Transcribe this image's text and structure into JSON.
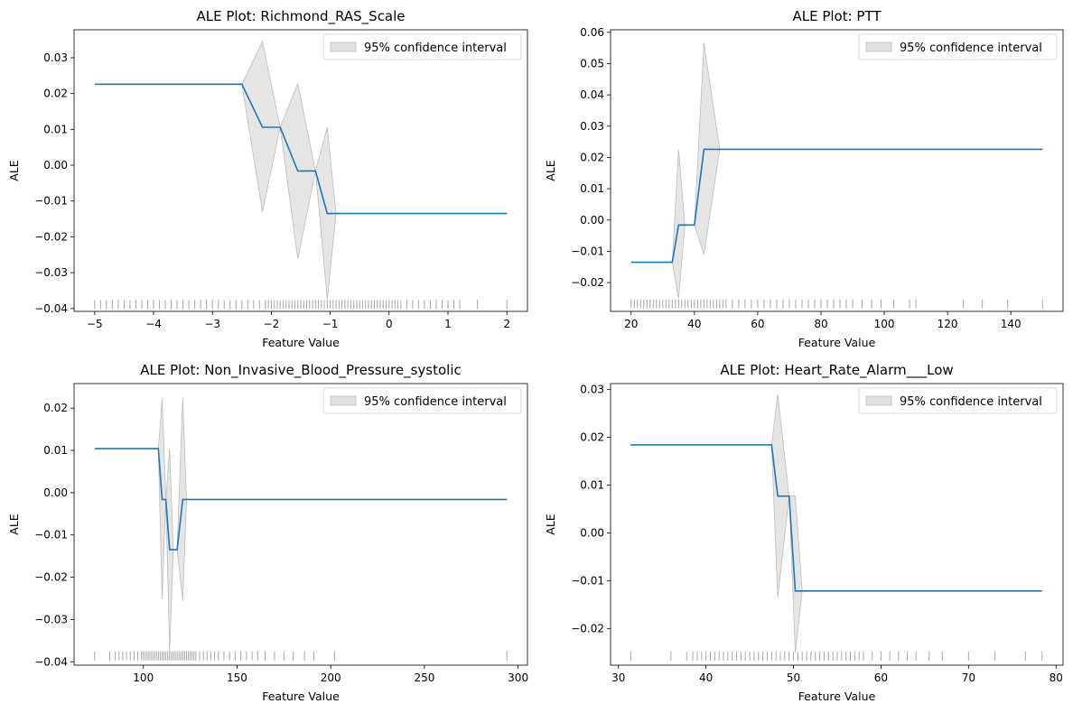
{
  "legend_label": "95% confidence interval",
  "colors": {
    "line": "#1f77b4",
    "ci_fill": "#cccccc",
    "ci_edge": "#bdbdbd",
    "rug": "#000000"
  },
  "chart_data": [
    {
      "type": "line",
      "title": "ALE Plot: Richmond_RAS_Scale",
      "xlabel": "Feature Value",
      "ylabel": "ALE",
      "xlim": [
        -5.35,
        2.35
      ],
      "ylim": [
        -0.0408,
        0.0378
      ],
      "xticks": [
        -5,
        -4,
        -3,
        -2,
        -1,
        0,
        1,
        2
      ],
      "yticks": [
        -0.04,
        -0.03,
        -0.02,
        -0.01,
        0.0,
        0.01,
        0.02,
        0.03
      ],
      "ytick_labels": [
        "−0.04",
        "−0.03",
        "−0.02",
        "−0.01",
        "0.00",
        "0.01",
        "0.02",
        "0.03"
      ],
      "xtick_labels": [
        "−5",
        "−4",
        "−3",
        "−2",
        "−1",
        "0",
        "1",
        "2"
      ],
      "legend": "upper right",
      "ale": {
        "x": [
          -5,
          -2.5,
          -2.15,
          -1.85,
          -1.55,
          -1.25,
          -1.05,
          2
        ],
        "y": [
          0.0226,
          0.0226,
          0.0106,
          0.0106,
          -0.0016,
          -0.0016,
          -0.0135,
          -0.0135
        ]
      },
      "ci": {
        "x": [
          -2.5,
          -2.15,
          -1.85,
          -1.55,
          -1.25,
          -1.05,
          -0.9
        ],
        "upper": [
          0.0226,
          0.0345,
          0.0106,
          0.0228,
          -0.0016,
          0.0105,
          -0.0135
        ],
        "lower": [
          0.0226,
          -0.013,
          0.0106,
          -0.0262,
          -0.0016,
          -0.0375,
          -0.0135
        ]
      },
      "rug": {
        "x": [
          -5,
          -4.9,
          -4.8,
          -4.7,
          -4.6,
          -4.5,
          -4.4,
          -4.3,
          -4.2,
          -4.1,
          -4,
          -3.9,
          -3.8,
          -3.7,
          -3.6,
          -3.5,
          -3.4,
          -3.3,
          -3.2,
          -3.1,
          -3,
          -2.9,
          -2.8,
          -2.7,
          -2.6,
          -2.5,
          -2.4,
          -2.3,
          -2.2,
          -2.1,
          -2.05,
          -2,
          -1.95,
          -1.9,
          -1.85,
          -1.8,
          -1.75,
          -1.7,
          -1.65,
          -1.6,
          -1.55,
          -1.5,
          -1.45,
          -1.4,
          -1.35,
          -1.3,
          -1.25,
          -1.2,
          -1.15,
          -1.1,
          -1.05,
          -1,
          -0.95,
          -0.9,
          -0.85,
          -0.8,
          -0.75,
          -0.7,
          -0.65,
          -0.6,
          -0.55,
          -0.5,
          -0.45,
          -0.4,
          -0.35,
          -0.3,
          -0.25,
          -0.2,
          -0.15,
          -0.1,
          -0.05,
          0,
          0.05,
          0.1,
          0.15,
          0.2,
          0.3,
          0.4,
          0.5,
          0.6,
          0.7,
          0.8,
          0.9,
          1.0,
          1.1,
          1.2,
          1.5,
          2.0
        ],
        "y": -0.0389
      }
    },
    {
      "type": "line",
      "title": "ALE Plot: PTT",
      "xlabel": "Feature Value",
      "ylabel": "ALE",
      "xlim": [
        13.5,
        156.5
      ],
      "ylim": [
        -0.0292,
        0.0608
      ],
      "xticks": [
        20,
        40,
        60,
        80,
        100,
        120,
        140
      ],
      "yticks": [
        -0.02,
        -0.01,
        0.0,
        0.01,
        0.02,
        0.03,
        0.04,
        0.05,
        0.06
      ],
      "ytick_labels": [
        "−0.02",
        "−0.01",
        "0.00",
        "0.01",
        "0.02",
        "0.03",
        "0.04",
        "0.05",
        "0.06"
      ],
      "xtick_labels": [
        "20",
        "40",
        "60",
        "80",
        "100",
        "120",
        "140"
      ],
      "legend": "upper right",
      "ale": {
        "x": [
          20,
          33,
          35,
          37,
          40,
          43,
          150
        ],
        "y": [
          -0.0135,
          -0.0135,
          -0.0016,
          -0.0016,
          -0.0016,
          0.0226,
          0.0226
        ]
      },
      "ci": {
        "x": [
          33,
          35,
          37,
          40,
          43,
          48
        ],
        "upper": [
          -0.0135,
          0.0225,
          -0.0016,
          -0.0016,
          0.0565,
          0.0226
        ],
        "lower": [
          -0.0135,
          -0.025,
          -0.0016,
          -0.0016,
          -0.011,
          0.0226
        ]
      },
      "rug": {
        "x": [
          20,
          21,
          22,
          23,
          24,
          25,
          26,
          27,
          28,
          29,
          30,
          31,
          32,
          33,
          34,
          35,
          36,
          37,
          38,
          39,
          40,
          41,
          42,
          43,
          44,
          45,
          46,
          47,
          48,
          49,
          50,
          52,
          54,
          56,
          58,
          60,
          62,
          64,
          66,
          68,
          70,
          72,
          74,
          76,
          78,
          80,
          82,
          84,
          86,
          88,
          90,
          93,
          96,
          99,
          103,
          108,
          110,
          125,
          131,
          139,
          150
        ],
        "y": -0.0268
      }
    },
    {
      "type": "line",
      "title": "ALE Plot: Non_Invasive_Blood_Pressure_systolic",
      "xlabel": "Feature Value",
      "ylabel": "ALE",
      "xlim": [
        63,
        305
      ],
      "ylim": [
        -0.0408,
        0.0258
      ],
      "xticks": [
        100,
        150,
        200,
        250,
        300
      ],
      "yticks": [
        -0.04,
        -0.03,
        -0.02,
        -0.01,
        0.0,
        0.01,
        0.02
      ],
      "ytick_labels": [
        "−0.04",
        "−0.03",
        "−0.02",
        "−0.01",
        "0.00",
        "0.01",
        "0.02"
      ],
      "xtick_labels": [
        "100",
        "150",
        "200",
        "250",
        "300"
      ],
      "legend": "upper right",
      "ale": {
        "x": [
          74,
          108,
          110,
          112,
          114,
          116,
          118,
          121,
          294
        ],
        "y": [
          0.0104,
          0.0104,
          -0.0016,
          -0.0016,
          -0.0135,
          -0.0135,
          -0.0135,
          -0.0016,
          -0.0016
        ]
      },
      "ci": {
        "x": [
          108,
          110,
          112,
          114,
          116,
          118,
          121,
          123
        ],
        "upper": [
          0.0104,
          0.0222,
          -0.0016,
          0.0103,
          -0.0135,
          -0.0135,
          0.0225,
          -0.0016
        ],
        "lower": [
          0.0104,
          -0.0252,
          -0.0016,
          -0.0375,
          -0.0135,
          -0.0135,
          -0.0255,
          -0.0016
        ]
      },
      "rug": {
        "x": [
          74,
          82,
          85,
          87,
          89,
          91,
          93,
          95,
          97,
          99,
          100,
          101,
          102,
          103,
          104,
          105,
          106,
          107,
          108,
          109,
          110,
          111,
          112,
          113,
          114,
          115,
          116,
          117,
          118,
          119,
          120,
          121,
          122,
          123,
          124,
          125,
          126,
          127,
          128,
          130,
          132,
          134,
          136,
          138,
          140,
          143,
          146,
          149,
          152,
          155,
          158,
          161,
          165,
          170,
          175,
          180,
          186,
          191,
          202,
          294
        ],
        "y": -0.0386
      }
    },
    {
      "type": "line",
      "title": "ALE Plot: Heart_Rate_Alarm___Low",
      "xlabel": "Feature Value",
      "ylabel": "ALE",
      "xlim": [
        29.1,
        80.8
      ],
      "ylim": [
        -0.0276,
        0.0312
      ],
      "xticks": [
        30,
        40,
        50,
        60,
        70,
        80
      ],
      "yticks": [
        -0.02,
        -0.01,
        0.0,
        0.01,
        0.02,
        0.03
      ],
      "ytick_labels": [
        "−0.02",
        "−0.01",
        "0.00",
        "0.01",
        "0.02",
        "0.03"
      ],
      "xtick_labels": [
        "30",
        "40",
        "50",
        "60",
        "70",
        "80"
      ],
      "legend": "upper right",
      "ale": {
        "x": [
          31.4,
          47.5,
          48.2,
          49.5,
          50.2,
          78.4
        ],
        "y": [
          0.0184,
          0.0184,
          0.0077,
          0.0077,
          -0.0121,
          -0.0121
        ]
      },
      "ci": {
        "x": [
          47.5,
          48.2,
          49.5,
          50.2,
          51
        ],
        "upper": [
          0.0184,
          0.029,
          0.0077,
          0.0077,
          -0.0121
        ],
        "lower": [
          0.0184,
          -0.0135,
          0.0077,
          -0.025,
          -0.0121
        ]
      },
      "rug": {
        "x": [
          31.4,
          36,
          37.8,
          38.5,
          39,
          39.5,
          40,
          40.5,
          41,
          41.5,
          42,
          42.5,
          43,
          43.5,
          44,
          44.5,
          45,
          45.5,
          46,
          46.5,
          47,
          47.5,
          48,
          48.5,
          49,
          49.5,
          50,
          50.5,
          51,
          51.5,
          52,
          52.5,
          53,
          53.5,
          54,
          54.5,
          55,
          55.5,
          56,
          56.5,
          57,
          57.5,
          58,
          59,
          60,
          61,
          62,
          63,
          64,
          65.5,
          67,
          70,
          73,
          76.5,
          78.4
        ],
        "y": -0.0257
      }
    }
  ]
}
